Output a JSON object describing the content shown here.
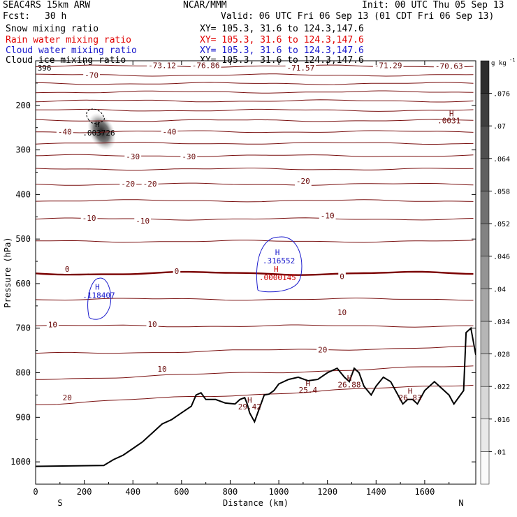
{
  "header": {
    "model": "SEAC4RS 15km ARW",
    "center": "NCAR/MMM",
    "init": "Init: 00 UTC Thu 05 Sep 13",
    "fcst_label": "Fcst:",
    "fcst_value": "30 h",
    "valid": "Valid: 06 UTC Fri 06 Sep 13 (01 CDT Fri 06 Sep 13)",
    "fields": [
      {
        "name": "Snow mixing ratio",
        "xy": "XY= 105.3, 31.6 to 124.3,147.6",
        "color": "#000000"
      },
      {
        "name": "Rain water mixing ratio",
        "xy": "XY= 105.3, 31.6 to 124.3,147.6",
        "color": "#e00000"
      },
      {
        "name": "Cloud water mixing ratio",
        "xy": "XY= 105.3, 31.6 to 124.3,147.6",
        "color": "#1a1acc"
      },
      {
        "name": "Cloud ice mixing ratio",
        "xy": "XY= 105.3, 31.6 to 124.3,147.6",
        "color": "#000000"
      }
    ]
  },
  "chart_data": {
    "type": "contour",
    "xlabel": "Distance (km)",
    "ylabel": "Pressure (hPa)",
    "xlim": [
      0,
      1810
    ],
    "ylim": [
      1050,
      100
    ],
    "x_ticks": [
      0,
      200,
      400,
      600,
      800,
      1000,
      1200,
      1400,
      1600
    ],
    "y_ticks": [
      200,
      300,
      400,
      500,
      600,
      700,
      800,
      900,
      1000
    ],
    "x_end_labels": {
      "left": "S",
      "right": "N"
    },
    "colorbar": {
      "unit": "g kg",
      "unit_exp": "-1",
      "levels": [
        0.01,
        0.016,
        0.022,
        0.028,
        0.034,
        0.04,
        0.046,
        0.052,
        0.058,
        0.064,
        0.07,
        0.076
      ],
      "labels": [
        ".01",
        ".016",
        ".022",
        ".028",
        ".034",
        ".04",
        ".046",
        ".052",
        ".058",
        ".064",
        ".07",
        ".076"
      ]
    },
    "temperature_contours": {
      "color": "#7a1010",
      "zero_color": "#7a0000",
      "levels": [
        {
          "value": -75,
          "p": 112
        },
        {
          "value": -70,
          "p": 132
        },
        {
          "value": -65,
          "p": 151
        },
        {
          "value": -60,
          "p": 170
        },
        {
          "value": -55,
          "p": 190
        },
        {
          "value": -50,
          "p": 211
        },
        {
          "value": -45,
          "p": 234
        },
        {
          "value": -40,
          "p": 259
        },
        {
          "value": -35,
          "p": 285
        },
        {
          "value": -30,
          "p": 313
        },
        {
          "value": -25,
          "p": 343
        },
        {
          "value": -20,
          "p": 377
        },
        {
          "value": -15,
          "p": 414
        },
        {
          "value": -10,
          "p": 455
        },
        {
          "value": -5,
          "p": 505
        },
        {
          "value": 0,
          "p": 577
        },
        {
          "value": 5,
          "p": 635
        },
        {
          "value": 10,
          "p": 695
        },
        {
          "value": 15,
          "p": 750
        },
        {
          "value": 20,
          "p": 800
        },
        {
          "value": 25,
          "p": 848
        }
      ],
      "labels": [
        {
          "text": "-70",
          "x": 230,
          "p": 132
        },
        {
          "text": "-73.12",
          "x": 520,
          "p": 110
        },
        {
          "text": "-76.86",
          "x": 700,
          "p": 110
        },
        {
          "text": "-71.57",
          "x": 1090,
          "p": 116
        },
        {
          "text": "-71.29",
          "x": 1450,
          "p": 110
        },
        {
          "text": "-70.63",
          "x": 1700,
          "p": 112
        },
        {
          "text": "-40",
          "x": 120,
          "p": 259
        },
        {
          "text": "-40",
          "x": 550,
          "p": 259
        },
        {
          "text": "-30",
          "x": 400,
          "p": 315
        },
        {
          "text": "-30",
          "x": 630,
          "p": 315
        },
        {
          "text": "-20",
          "x": 380,
          "p": 376
        },
        {
          "text": "-20",
          "x": 470,
          "p": 376
        },
        {
          "text": "-20",
          "x": 1100,
          "p": 370
        },
        {
          "text": "-10",
          "x": 220,
          "p": 453
        },
        {
          "text": "-10",
          "x": 440,
          "p": 459
        },
        {
          "text": "-10",
          "x": 1200,
          "p": 447
        },
        {
          "text": "0",
          "x": 130,
          "p": 567
        },
        {
          "text": "0",
          "x": 580,
          "p": 572
        },
        {
          "text": "0",
          "x": 1260,
          "p": 584
        },
        {
          "text": "10",
          "x": 70,
          "p": 692
        },
        {
          "text": "10",
          "x": 480,
          "p": 691
        },
        {
          "text": "10",
          "x": 1260,
          "p": 664
        },
        {
          "text": "20",
          "x": 1180,
          "p": 748
        },
        {
          "text": "20",
          "x": 130,
          "p": 856
        },
        {
          "text": "10",
          "x": 520,
          "p": 791
        }
      ],
      "H_labels": [
        {
          "text": "H",
          "x": 1710,
          "p": 225
        },
        {
          "text": ".0031",
          "x": 1700,
          "p": 240
        },
        {
          "text": "H",
          "x": 880,
          "p": 867
        },
        {
          "text": "29.42",
          "x": 880,
          "p": 882
        },
        {
          "text": "H",
          "x": 1120,
          "p": 830
        },
        {
          "text": "25.4",
          "x": 1120,
          "p": 845
        },
        {
          "text": "H",
          "x": 1290,
          "p": 818
        },
        {
          "text": "26.88",
          "x": 1290,
          "p": 833
        },
        {
          "text": "H",
          "x": 1540,
          "p": 847
        },
        {
          "text": "26.83",
          "x": 1540,
          "p": 862
        }
      ],
      "left_edge_labels": [
        {
          "text": "396",
          "x": 2,
          "p": 122
        }
      ]
    },
    "maxima": [
      {
        "field": "Cloud ice mixing ratio",
        "text": "H",
        "value": ".003726",
        "x": 260,
        "p": 268,
        "color": "#000000"
      },
      {
        "field": "Cloud water mixing ratio",
        "text": "H",
        "value": ".316552",
        "x": 1000,
        "p": 555,
        "color": "#1a1acc"
      },
      {
        "field": "Rain water mixing ratio",
        "text": "H",
        "value": ".0000145",
        "x": 995,
        "p": 592,
        "color": "#cc0000"
      },
      {
        "field": "Cloud water mixing ratio",
        "text": "H",
        "value": ".118407",
        "x": 260,
        "p": 632,
        "color": "#1a1acc"
      }
    ],
    "terrain": {
      "color": "#000000",
      "x": [
        0,
        280,
        320,
        360,
        400,
        440,
        480,
        520,
        560,
        600,
        640,
        660,
        680,
        700,
        740,
        780,
        820,
        840,
        860,
        870,
        880,
        900,
        920,
        940,
        960,
        980,
        1000,
        1040,
        1080,
        1120,
        1160,
        1200,
        1240,
        1270,
        1290,
        1310,
        1330,
        1350,
        1380,
        1400,
        1430,
        1460,
        1490,
        1510,
        1530,
        1550,
        1570,
        1600,
        1640,
        1660,
        1700,
        1720,
        1760,
        1770,
        1790,
        1810
      ],
      "p": [
        1010,
        1008,
        995,
        985,
        970,
        955,
        935,
        915,
        905,
        890,
        875,
        850,
        845,
        860,
        860,
        868,
        870,
        860,
        856,
        870,
        890,
        910,
        880,
        850,
        848,
        840,
        825,
        815,
        810,
        818,
        815,
        800,
        790,
        810,
        820,
        790,
        800,
        830,
        850,
        830,
        810,
        820,
        850,
        870,
        860,
        860,
        870,
        840,
        820,
        830,
        850,
        870,
        840,
        710,
        700,
        760
      ]
    }
  }
}
